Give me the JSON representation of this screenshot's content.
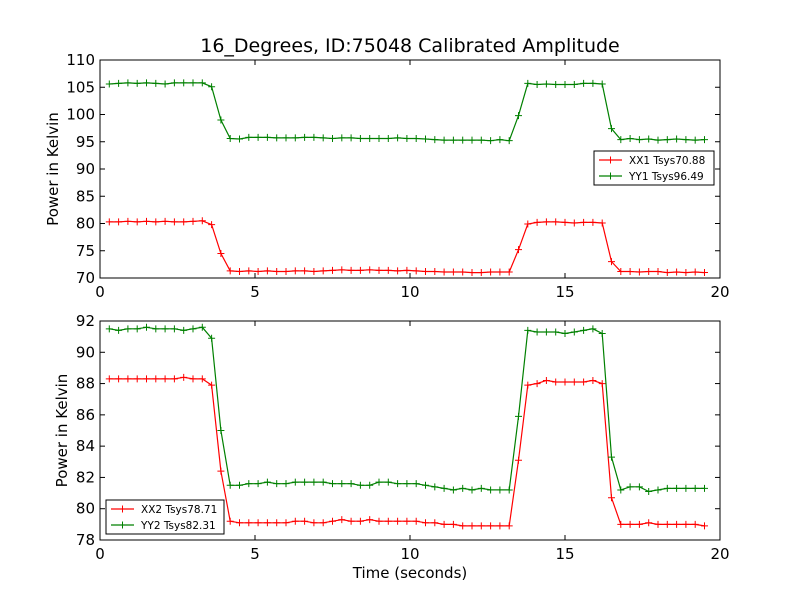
{
  "figure": {
    "title": "16_Degrees, ID:75048 Calibrated Amplitude",
    "xlabel": "Time (seconds)"
  },
  "chart_data": [
    {
      "type": "line",
      "title": "16_Degrees, ID:75048 Calibrated Amplitude",
      "xlabel": "",
      "ylabel": "Power in Kelvin",
      "xlim": [
        0,
        20
      ],
      "ylim": [
        70,
        110
      ],
      "xticks": [
        0,
        5,
        10,
        15,
        20
      ],
      "yticks": [
        70,
        75,
        80,
        85,
        90,
        95,
        100,
        105,
        110
      ],
      "grid": false,
      "legend_position": "right",
      "marker": "plus",
      "x": [
        0.3,
        0.6,
        0.9,
        1.2,
        1.5,
        1.8,
        2.1,
        2.4,
        2.7,
        3.0,
        3.3,
        3.6,
        3.9,
        4.2,
        4.5,
        4.8,
        5.1,
        5.4,
        5.7,
        6.0,
        6.3,
        6.6,
        6.9,
        7.2,
        7.5,
        7.8,
        8.1,
        8.4,
        8.7,
        9.0,
        9.3,
        9.6,
        9.9,
        10.2,
        10.5,
        10.8,
        11.1,
        11.4,
        11.7,
        12.0,
        12.3,
        12.6,
        12.9,
        13.2,
        13.5,
        13.8,
        14.1,
        14.4,
        14.7,
        15.0,
        15.3,
        15.6,
        15.9,
        16.2,
        16.5,
        16.8,
        17.1,
        17.4,
        17.7,
        18.0,
        18.3,
        18.6,
        18.9,
        19.2,
        19.5
      ],
      "series": [
        {
          "name": "XX1 Tsys70.88",
          "color": "#ff0000",
          "values": [
            80.3,
            80.3,
            80.4,
            80.3,
            80.4,
            80.3,
            80.4,
            80.3,
            80.3,
            80.4,
            80.5,
            79.8,
            74.5,
            71.3,
            71.2,
            71.3,
            71.2,
            71.3,
            71.2,
            71.2,
            71.3,
            71.3,
            71.2,
            71.3,
            71.4,
            71.5,
            71.4,
            71.4,
            71.5,
            71.4,
            71.4,
            71.3,
            71.4,
            71.3,
            71.2,
            71.2,
            71.1,
            71.1,
            71.1,
            71.0,
            71.0,
            71.1,
            71.1,
            71.1,
            75.2,
            79.9,
            80.2,
            80.3,
            80.3,
            80.2,
            80.1,
            80.2,
            80.2,
            80.1,
            73.0,
            71.2,
            71.2,
            71.1,
            71.2,
            71.2,
            71.0,
            71.1,
            71.0,
            71.1,
            71.0
          ]
        },
        {
          "name": "YY1 Tsys96.49",
          "color": "#008000",
          "values": [
            105.6,
            105.7,
            105.8,
            105.7,
            105.8,
            105.7,
            105.6,
            105.8,
            105.8,
            105.8,
            105.8,
            105.1,
            99.0,
            95.6,
            95.5,
            95.8,
            95.8,
            95.8,
            95.7,
            95.7,
            95.7,
            95.8,
            95.8,
            95.7,
            95.6,
            95.7,
            95.7,
            95.6,
            95.6,
            95.6,
            95.6,
            95.7,
            95.6,
            95.6,
            95.5,
            95.4,
            95.3,
            95.3,
            95.3,
            95.3,
            95.3,
            95.2,
            95.4,
            95.2,
            99.8,
            105.7,
            105.5,
            105.6,
            105.5,
            105.5,
            105.5,
            105.7,
            105.7,
            105.6,
            97.4,
            95.4,
            95.6,
            95.4,
            95.5,
            95.3,
            95.4,
            95.5,
            95.4,
            95.3,
            95.4
          ]
        }
      ]
    },
    {
      "type": "line",
      "title": "",
      "xlabel": "Time (seconds)",
      "ylabel": "Power in Kelvin",
      "xlim": [
        0,
        20
      ],
      "ylim": [
        78,
        92
      ],
      "xticks": [
        0,
        5,
        10,
        15,
        20
      ],
      "yticks": [
        78,
        80,
        82,
        84,
        86,
        88,
        90,
        92
      ],
      "grid": false,
      "legend_position": "bottom-left",
      "marker": "plus",
      "x": [
        0.3,
        0.6,
        0.9,
        1.2,
        1.5,
        1.8,
        2.1,
        2.4,
        2.7,
        3.0,
        3.3,
        3.6,
        3.9,
        4.2,
        4.5,
        4.8,
        5.1,
        5.4,
        5.7,
        6.0,
        6.3,
        6.6,
        6.9,
        7.2,
        7.5,
        7.8,
        8.1,
        8.4,
        8.7,
        9.0,
        9.3,
        9.6,
        9.9,
        10.2,
        10.5,
        10.8,
        11.1,
        11.4,
        11.7,
        12.0,
        12.3,
        12.6,
        12.9,
        13.2,
        13.5,
        13.8,
        14.1,
        14.4,
        14.7,
        15.0,
        15.3,
        15.6,
        15.9,
        16.2,
        16.5,
        16.8,
        17.1,
        17.4,
        17.7,
        18.0,
        18.3,
        18.6,
        18.9,
        19.2,
        19.5
      ],
      "series": [
        {
          "name": "XX2 Tsys78.71",
          "color": "#ff0000",
          "values": [
            88.3,
            88.3,
            88.3,
            88.3,
            88.3,
            88.3,
            88.3,
            88.3,
            88.4,
            88.3,
            88.3,
            87.9,
            82.4,
            79.2,
            79.1,
            79.1,
            79.1,
            79.1,
            79.1,
            79.1,
            79.2,
            79.2,
            79.1,
            79.1,
            79.2,
            79.3,
            79.2,
            79.2,
            79.3,
            79.2,
            79.2,
            79.2,
            79.2,
            79.2,
            79.1,
            79.1,
            79.0,
            79.0,
            78.9,
            78.9,
            78.9,
            78.9,
            78.9,
            78.9,
            83.1,
            87.9,
            88.0,
            88.2,
            88.1,
            88.1,
            88.1,
            88.1,
            88.2,
            88.0,
            80.7,
            79.0,
            79.0,
            79.0,
            79.1,
            79.0,
            79.0,
            79.0,
            79.0,
            79.0,
            78.9
          ]
        },
        {
          "name": "YY2 Tsys82.31",
          "color": "#008000",
          "values": [
            91.5,
            91.4,
            91.5,
            91.5,
            91.6,
            91.5,
            91.5,
            91.5,
            91.4,
            91.5,
            91.6,
            90.9,
            85.0,
            81.5,
            81.5,
            81.6,
            81.6,
            81.7,
            81.6,
            81.6,
            81.7,
            81.7,
            81.7,
            81.7,
            81.6,
            81.6,
            81.6,
            81.5,
            81.5,
            81.7,
            81.7,
            81.6,
            81.6,
            81.6,
            81.5,
            81.4,
            81.3,
            81.2,
            81.3,
            81.2,
            81.3,
            81.2,
            81.2,
            81.2,
            85.9,
            91.4,
            91.3,
            91.3,
            91.3,
            91.2,
            91.3,
            91.4,
            91.5,
            91.2,
            83.3,
            81.2,
            81.4,
            81.4,
            81.1,
            81.2,
            81.3,
            81.3,
            81.3,
            81.3,
            81.3
          ]
        }
      ]
    }
  ]
}
